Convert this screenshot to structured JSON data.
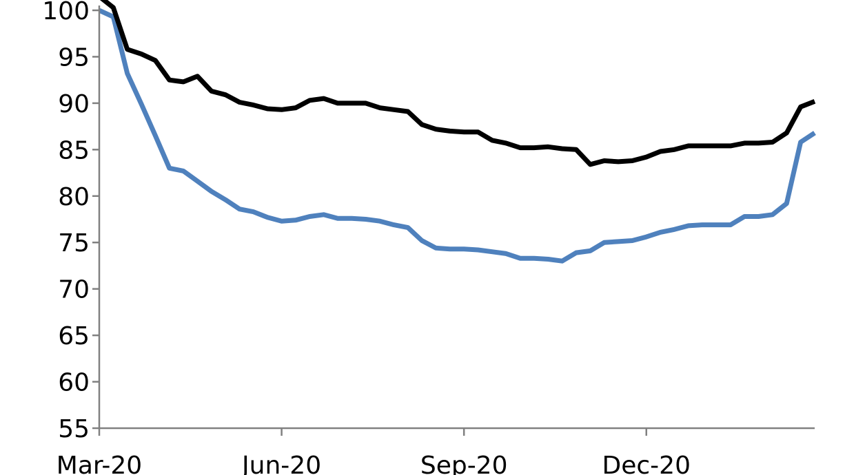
{
  "chart_data": {
    "type": "line",
    "title": "",
    "xlabel": "",
    "ylabel": "",
    "ylim": [
      55,
      100
    ],
    "yticks": [
      "55",
      "60",
      "65",
      "70",
      "75",
      "80",
      "85",
      "90",
      "95",
      "100"
    ],
    "xticks": [
      {
        "label": "Mar-20",
        "week": 0
      },
      {
        "label": "Jun-20",
        "week": 13
      },
      {
        "label": "Sep-20",
        "week": 26
      },
      {
        "label": "Dec-20",
        "week": 39
      }
    ],
    "grid": false,
    "legend": "none",
    "x_weeks": [
      0,
      1,
      2,
      3,
      4,
      5,
      6,
      7,
      8,
      9,
      10,
      11,
      12,
      13,
      14,
      15,
      16,
      17,
      18,
      19,
      20,
      21,
      22,
      23,
      24,
      25,
      26,
      27,
      28,
      29,
      30,
      31,
      32,
      33,
      34,
      35,
      36,
      37,
      38,
      39,
      40,
      41,
      42,
      43,
      44,
      45,
      46,
      47,
      48,
      49,
      50,
      51
    ],
    "series": [
      {
        "color": "#000000",
        "values": [
          101.5,
          100.3,
          95.8,
          95.3,
          94.6,
          92.5,
          92.3,
          92.9,
          91.3,
          90.9,
          90.1,
          89.8,
          89.4,
          89.3,
          89.5,
          90.3,
          90.5,
          90.0,
          90.0,
          90.0,
          89.5,
          89.3,
          89.1,
          87.7,
          87.2,
          87.0,
          86.9,
          86.9,
          86.0,
          85.7,
          85.2,
          85.2,
          85.3,
          85.1,
          85.0,
          83.4,
          83.8,
          83.7,
          83.8,
          84.2,
          84.8,
          85.0,
          85.4,
          85.4,
          85.4,
          85.4,
          85.7,
          85.7,
          85.8,
          86.8,
          89.6,
          90.2
        ]
      },
      {
        "color": "#4F81BD",
        "values": [
          100.0,
          99.3,
          93.2,
          89.9,
          86.5,
          83.0,
          82.7,
          81.6,
          80.5,
          79.6,
          78.6,
          78.3,
          77.7,
          77.3,
          77.4,
          77.8,
          78.0,
          77.6,
          77.6,
          77.5,
          77.3,
          76.9,
          76.6,
          75.2,
          74.4,
          74.3,
          74.3,
          74.2,
          74.0,
          73.8,
          73.3,
          73.3,
          73.2,
          73.0,
          73.9,
          74.1,
          75.0,
          75.1,
          75.2,
          75.6,
          76.1,
          76.4,
          76.8,
          76.9,
          76.9,
          76.9,
          77.8,
          77.8,
          78.0,
          79.2,
          85.8,
          86.8
        ]
      }
    ]
  }
}
